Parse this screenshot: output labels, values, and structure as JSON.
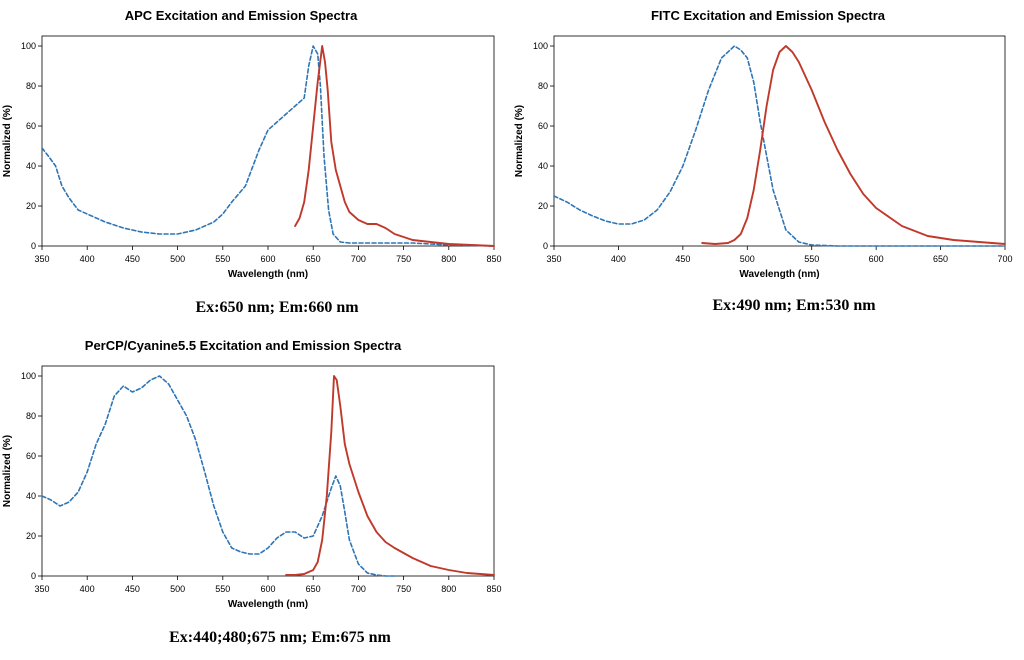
{
  "chart_data": [
    {
      "type": "line",
      "title": "APC Excitation and Emission Spectra",
      "xlabel": "Wavelength (nm)",
      "ylabel": "Normalized (%)",
      "xlim": [
        350,
        850
      ],
      "ylim": [
        0,
        105
      ],
      "xticks": [
        350,
        400,
        450,
        500,
        550,
        600,
        650,
        700,
        750,
        800,
        850
      ],
      "yticks": [
        0,
        20,
        40,
        60,
        80,
        100
      ],
      "grid": false,
      "caption": "Ex:650 nm; Em:660 nm",
      "series": [
        {
          "style": "dashed",
          "color": "#2e75b6",
          "x": [
            350,
            357,
            365,
            372,
            380,
            390,
            400,
            420,
            440,
            460,
            480,
            500,
            520,
            540,
            550,
            560,
            575,
            590,
            600,
            615,
            630,
            640,
            645,
            650,
            655,
            658,
            662,
            667,
            672,
            680,
            690,
            720,
            760,
            800,
            850
          ],
          "y": [
            49,
            45,
            40,
            30,
            24,
            18,
            16,
            12,
            9,
            7,
            6,
            6,
            8,
            12,
            16,
            22,
            30,
            48,
            58,
            64,
            70,
            74,
            90,
            100,
            96,
            80,
            45,
            18,
            6,
            2,
            1.5,
            1.5,
            1.5,
            0.5,
            0
          ]
        },
        {
          "style": "solid",
          "color": "#c0392b",
          "x": [
            630,
            635,
            640,
            645,
            650,
            655,
            660,
            663,
            666,
            670,
            675,
            680,
            685,
            690,
            700,
            710,
            720,
            730,
            740,
            760,
            780,
            800,
            850
          ],
          "y": [
            10,
            14,
            22,
            38,
            60,
            82,
            100,
            92,
            78,
            52,
            38,
            30,
            22,
            17,
            13,
            11,
            11,
            9,
            6,
            3,
            2,
            1,
            0
          ]
        }
      ]
    },
    {
      "type": "line",
      "title": "FITC Excitation and Emission Spectra",
      "xlabel": "Wavelength (nm)",
      "ylabel": "Normalized (%)",
      "xlim": [
        350,
        700
      ],
      "ylim": [
        0,
        105
      ],
      "xticks": [
        350,
        400,
        450,
        500,
        550,
        600,
        650,
        700
      ],
      "yticks": [
        0,
        20,
        40,
        60,
        80,
        100
      ],
      "grid": false,
      "caption": "Ex:490 nm; Em:530 nm",
      "series": [
        {
          "style": "dashed",
          "color": "#2e75b6",
          "x": [
            350,
            360,
            370,
            380,
            390,
            400,
            410,
            420,
            430,
            440,
            450,
            460,
            470,
            480,
            490,
            495,
            500,
            505,
            510,
            520,
            530,
            540,
            550,
            570,
            600,
            700
          ],
          "y": [
            25,
            22,
            18,
            15,
            12.5,
            11,
            11,
            13,
            18,
            27,
            40,
            58,
            78,
            94,
            100,
            98,
            94,
            82,
            62,
            28,
            8,
            2,
            0.5,
            0,
            0,
            0
          ]
        },
        {
          "style": "solid",
          "color": "#c0392b",
          "x": [
            465,
            475,
            485,
            490,
            495,
            500,
            505,
            510,
            515,
            520,
            525,
            530,
            535,
            540,
            550,
            560,
            570,
            580,
            590,
            600,
            620,
            640,
            660,
            680,
            700
          ],
          "y": [
            1.5,
            1,
            1.5,
            3,
            6,
            14,
            28,
            48,
            70,
            88,
            97,
            100,
            97,
            92,
            78,
            62,
            48,
            36,
            26,
            19,
            10,
            5,
            3,
            2,
            1
          ]
        }
      ]
    },
    {
      "type": "line",
      "title": "PerCP/Cyanine5.5 Excitation and Emission Spectra",
      "xlabel": "Wavelength (nm)",
      "ylabel": "Normalized (%)",
      "xlim": [
        350,
        850
      ],
      "ylim": [
        0,
        105
      ],
      "xticks": [
        350,
        400,
        450,
        500,
        550,
        600,
        650,
        700,
        750,
        800,
        850
      ],
      "yticks": [
        0,
        20,
        40,
        60,
        80,
        100
      ],
      "grid": false,
      "caption": "Ex:440;480;675 nm; Em:675 nm",
      "series": [
        {
          "style": "dashed",
          "color": "#2e75b6",
          "x": [
            350,
            360,
            370,
            380,
            390,
            400,
            410,
            420,
            430,
            440,
            450,
            460,
            470,
            480,
            490,
            500,
            510,
            520,
            530,
            540,
            550,
            560,
            570,
            580,
            590,
            600,
            610,
            620,
            630,
            640,
            650,
            660,
            670,
            675,
            680,
            685,
            690,
            700,
            710,
            720,
            730,
            740
          ],
          "y": [
            40,
            38,
            35,
            37,
            42,
            52,
            66,
            76,
            90,
            95,
            92,
            94,
            98,
            100,
            96,
            88,
            80,
            68,
            52,
            35,
            22,
            14,
            12,
            11,
            11,
            14,
            19,
            22,
            22,
            19,
            20,
            30,
            44,
            50,
            45,
            32,
            18,
            6,
            1.5,
            0.5,
            0,
            0
          ]
        },
        {
          "style": "solid",
          "color": "#c0392b",
          "x": [
            620,
            630,
            640,
            650,
            655,
            660,
            665,
            670,
            673,
            676,
            680,
            685,
            690,
            700,
            710,
            720,
            730,
            740,
            760,
            780,
            800,
            820,
            850
          ],
          "y": [
            0.5,
            0.5,
            1,
            3,
            7,
            18,
            40,
            72,
            100,
            98,
            85,
            66,
            56,
            42,
            30,
            22,
            17,
            14,
            9,
            5,
            3,
            1.5,
            0.5
          ]
        }
      ]
    }
  ]
}
